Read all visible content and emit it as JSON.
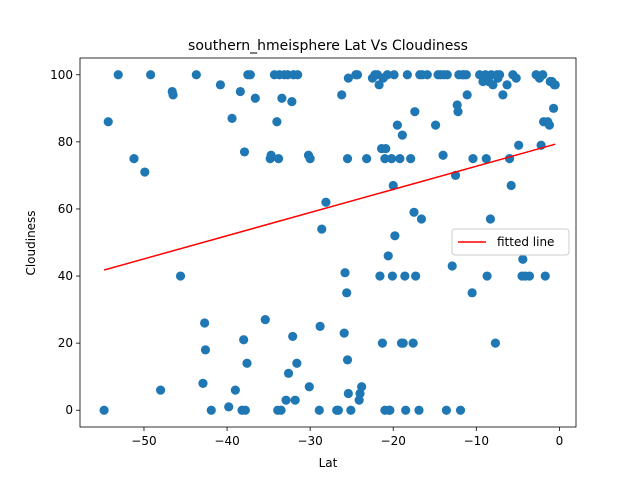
{
  "chart_data": {
    "type": "scatter",
    "title": "southern_hmeisphere Lat Vs Cloudiness",
    "xlabel": "Lat",
    "ylabel": "Cloudiness",
    "xlim": [
      -57.7,
      2.0
    ],
    "ylim": [
      -5,
      105
    ],
    "xticks": [
      -50,
      -40,
      -30,
      -20,
      -10,
      0
    ],
    "xtick_labels": [
      "−50",
      "−40",
      "−30",
      "−20",
      "−10",
      "0"
    ],
    "yticks": [
      0,
      20,
      40,
      60,
      80,
      100
    ],
    "ytick_labels": [
      "0",
      "20",
      "40",
      "60",
      "80",
      "100"
    ],
    "grid": false,
    "legend_placement": "center-right",
    "colors": {
      "points": "#1f77b4",
      "fit_line": "#ff0000",
      "legend_border": "#cccccc"
    },
    "series": [
      {
        "type": "scatter",
        "points": [
          [
            -54.8,
            0
          ],
          [
            -54.3,
            86
          ],
          [
            -53.1,
            100
          ],
          [
            -51.2,
            75
          ],
          [
            -49.9,
            71
          ],
          [
            -49.2,
            100
          ],
          [
            -48.0,
            6
          ],
          [
            -46.6,
            95
          ],
          [
            -46.5,
            94
          ],
          [
            -45.6,
            40
          ],
          [
            -43.7,
            100
          ],
          [
            -42.9,
            8
          ],
          [
            -42.7,
            26
          ],
          [
            -42.6,
            18
          ],
          [
            -41.9,
            0
          ],
          [
            -40.8,
            97
          ],
          [
            -39.8,
            1
          ],
          [
            -39.4,
            87
          ],
          [
            -39.0,
            6
          ],
          [
            -38.4,
            95
          ],
          [
            -38.2,
            0
          ],
          [
            -38.0,
            21
          ],
          [
            -37.9,
            77
          ],
          [
            -37.8,
            0
          ],
          [
            -37.6,
            14
          ],
          [
            -37.5,
            100
          ],
          [
            -37.2,
            100
          ],
          [
            -36.6,
            93
          ],
          [
            -35.4,
            27
          ],
          [
            -34.8,
            75
          ],
          [
            -34.7,
            76
          ],
          [
            -34.3,
            100
          ],
          [
            -34.0,
            86
          ],
          [
            -33.9,
            0
          ],
          [
            -33.8,
            75
          ],
          [
            -33.7,
            100
          ],
          [
            -33.5,
            0
          ],
          [
            -33.4,
            93
          ],
          [
            -33.1,
            100
          ],
          [
            -32.9,
            3
          ],
          [
            -32.7,
            100
          ],
          [
            -32.6,
            11
          ],
          [
            -32.2,
            92
          ],
          [
            -32.1,
            22
          ],
          [
            -32.0,
            100
          ],
          [
            -31.8,
            3
          ],
          [
            -31.6,
            14
          ],
          [
            -31.5,
            100
          ],
          [
            -30.2,
            76
          ],
          [
            -30.1,
            7
          ],
          [
            -30.0,
            75
          ],
          [
            -28.9,
            0
          ],
          [
            -28.8,
            25
          ],
          [
            -28.6,
            54
          ],
          [
            -28.1,
            62
          ],
          [
            -26.8,
            0
          ],
          [
            -26.6,
            0
          ],
          [
            -26.2,
            94
          ],
          [
            -25.9,
            23
          ],
          [
            -25.8,
            41
          ],
          [
            -25.6,
            35
          ],
          [
            -25.5,
            75
          ],
          [
            -25.4,
            5
          ],
          [
            -25.5,
            15
          ],
          [
            -25.4,
            99
          ],
          [
            -25.1,
            0
          ],
          [
            -24.5,
            100
          ],
          [
            -24.3,
            100
          ],
          [
            -24.1,
            3
          ],
          [
            -24.0,
            5
          ],
          [
            -23.8,
            7
          ],
          [
            -23.2,
            75
          ],
          [
            -22.5,
            99
          ],
          [
            -22.2,
            100
          ],
          [
            -21.9,
            100
          ],
          [
            -21.6,
            40
          ],
          [
            -21.7,
            97
          ],
          [
            -21.4,
            78
          ],
          [
            -21.3,
            20
          ],
          [
            -21.2,
            99
          ],
          [
            -21.0,
            0
          ],
          [
            -21.0,
            75
          ],
          [
            -20.9,
            78
          ],
          [
            -20.7,
            100
          ],
          [
            -20.6,
            46
          ],
          [
            -20.5,
            0
          ],
          [
            -20.4,
            0
          ],
          [
            -20.2,
            75
          ],
          [
            -20.1,
            40
          ],
          [
            -20.0,
            67
          ],
          [
            -19.9,
            100
          ],
          [
            -19.8,
            52
          ],
          [
            -19.5,
            85
          ],
          [
            -19.2,
            75
          ],
          [
            -19.0,
            20
          ],
          [
            -18.9,
            82
          ],
          [
            -18.8,
            20
          ],
          [
            -18.6,
            40
          ],
          [
            -18.5,
            0
          ],
          [
            -18.3,
            100
          ],
          [
            -17.9,
            75
          ],
          [
            -17.6,
            20
          ],
          [
            -17.5,
            59
          ],
          [
            -17.4,
            89
          ],
          [
            -17.3,
            40
          ],
          [
            -16.9,
            0
          ],
          [
            -16.8,
            100
          ],
          [
            -16.6,
            57
          ],
          [
            -16.5,
            100
          ],
          [
            -15.9,
            100
          ],
          [
            -14.9,
            85
          ],
          [
            -14.6,
            100
          ],
          [
            -14.3,
            100
          ],
          [
            -14.0,
            76
          ],
          [
            -13.9,
            100
          ],
          [
            -13.6,
            0
          ],
          [
            -13.5,
            100
          ],
          [
            -12.9,
            43
          ],
          [
            -12.5,
            70
          ],
          [
            -12.3,
            91
          ],
          [
            -12.2,
            89
          ],
          [
            -12.1,
            100
          ],
          [
            -11.9,
            0
          ],
          [
            -11.7,
            100
          ],
          [
            -11.5,
            100
          ],
          [
            -11.2,
            100
          ],
          [
            -11.1,
            94
          ],
          [
            -10.5,
            35
          ],
          [
            -10.4,
            75
          ],
          [
            -9.6,
            100
          ],
          [
            -9.2,
            98
          ],
          [
            -8.9,
            100
          ],
          [
            -8.8,
            75
          ],
          [
            -8.7,
            40
          ],
          [
            -8.6,
            99
          ],
          [
            -8.5,
            98
          ],
          [
            -8.3,
            57
          ],
          [
            -8.2,
            100
          ],
          [
            -8.0,
            97
          ],
          [
            -7.7,
            20
          ],
          [
            -7.5,
            100
          ],
          [
            -7.4,
            99
          ],
          [
            -7.2,
            100
          ],
          [
            -6.8,
            94
          ],
          [
            -6.3,
            97
          ],
          [
            -6.0,
            75
          ],
          [
            -5.8,
            67
          ],
          [
            -5.6,
            100
          ],
          [
            -5.2,
            99
          ],
          [
            -4.9,
            79
          ],
          [
            -4.5,
            40
          ],
          [
            -4.4,
            45
          ],
          [
            -4.1,
            40
          ],
          [
            -3.6,
            40
          ],
          [
            -2.8,
            100
          ],
          [
            -2.4,
            99
          ],
          [
            -2.2,
            79
          ],
          [
            -2.0,
            100
          ],
          [
            -1.9,
            86
          ],
          [
            -1.7,
            40
          ],
          [
            -1.4,
            86
          ],
          [
            -1.2,
            85
          ],
          [
            -1.1,
            98
          ],
          [
            -0.9,
            98
          ],
          [
            -0.7,
            90
          ],
          [
            -0.6,
            97
          ],
          [
            -0.5,
            97
          ]
        ]
      },
      {
        "name": "fitted line",
        "type": "line",
        "x": [
          -54.8,
          -0.5
        ],
        "y": [
          41.8,
          79.3
        ]
      }
    ],
    "legend": [
      "fitted line"
    ]
  }
}
